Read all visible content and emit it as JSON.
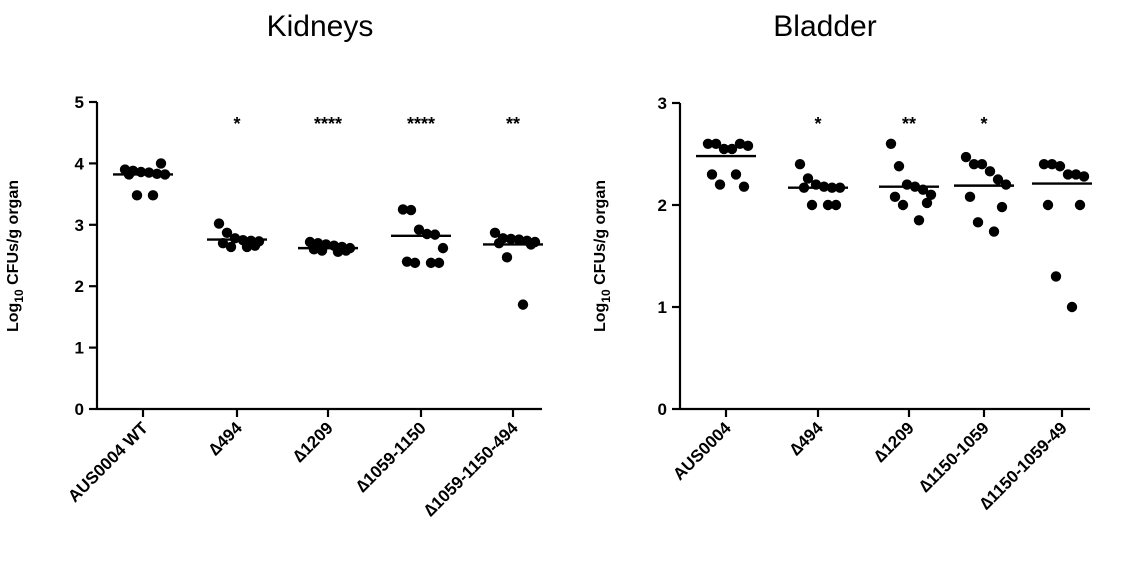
{
  "chart_data": [
    {
      "type": "scatter",
      "title": "Kidneys",
      "ylabel_main": "Log",
      "ylabel_sub": "10",
      "ylabel_rest": " CFUs/g organ",
      "ylim": [
        0,
        5
      ],
      "yticks": [
        "0",
        "1",
        "2",
        "3",
        "4",
        "5"
      ],
      "categories": [
        "AUS0004 WT",
        "∆494",
        "∆1209",
        "∆1059-1150",
        "∆1059-1150-494"
      ],
      "significance": [
        "",
        "*",
        "****",
        "****",
        "**"
      ],
      "means": [
        3.82,
        2.76,
        2.62,
        2.82,
        2.68
      ],
      "points": [
        [
          3.9,
          3.88,
          3.86,
          3.85,
          3.83,
          3.82,
          3.82,
          4.0,
          3.48,
          3.48
        ],
        [
          3.02,
          2.87,
          2.78,
          2.75,
          2.74,
          2.73,
          2.7,
          2.66,
          2.64,
          2.64
        ],
        [
          2.72,
          2.7,
          2.68,
          2.66,
          2.64,
          2.62,
          2.6,
          2.58,
          2.58,
          2.56
        ],
        [
          3.25,
          3.24,
          2.92,
          2.85,
          2.84,
          2.62,
          2.4,
          2.38,
          2.38,
          2.38
        ],
        [
          2.87,
          2.78,
          2.77,
          2.76,
          2.74,
          2.72,
          2.7,
          2.68,
          2.47,
          1.7
        ]
      ]
    },
    {
      "type": "scatter",
      "title": "Bladder",
      "ylabel_main": "Log",
      "ylabel_sub": "10",
      "ylabel_rest": " CFUs/g organ",
      "ylim": [
        0,
        3
      ],
      "yticks": [
        "0",
        "1",
        "2",
        "3"
      ],
      "categories": [
        "AUS0004",
        "∆494",
        "∆1209",
        "∆1150-1059",
        "∆1150-1059-49"
      ],
      "significance": [
        "",
        "*",
        "**",
        "*",
        ""
      ],
      "means": [
        2.48,
        2.17,
        2.18,
        2.19,
        2.21
      ],
      "points": [
        [
          2.6,
          2.6,
          2.55,
          2.55,
          2.6,
          2.58,
          2.3,
          2.18,
          2.2,
          2.3
        ],
        [
          2.4,
          2.26,
          2.2,
          2.18,
          2.17,
          2.17,
          2.17,
          2.0,
          2.0,
          2.0
        ],
        [
          2.6,
          2.38,
          2.2,
          2.18,
          2.15,
          2.1,
          2.08,
          2.02,
          2.0,
          1.85
        ],
        [
          2.47,
          2.4,
          2.4,
          2.33,
          2.25,
          2.2,
          2.08,
          1.98,
          1.83,
          1.74
        ],
        [
          2.4,
          2.4,
          2.38,
          2.3,
          2.3,
          2.28,
          2.0,
          2.0,
          1.3,
          1.0
        ]
      ]
    }
  ]
}
